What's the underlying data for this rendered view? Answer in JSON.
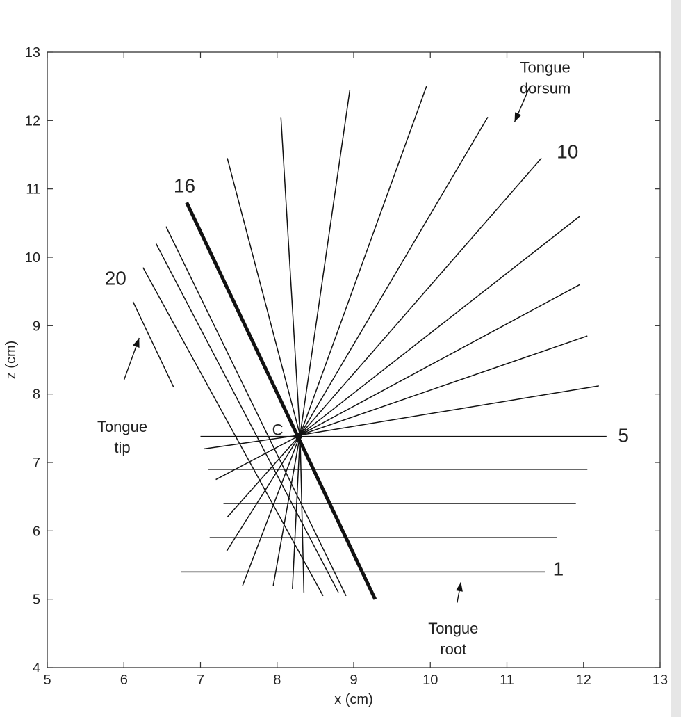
{
  "chart_data": {
    "type": "line",
    "xlabel": "x (cm)",
    "ylabel": "z (cm)",
    "xlim": [
      5,
      13
    ],
    "ylim": [
      4,
      13
    ],
    "x_ticks": [
      5,
      6,
      7,
      8,
      9,
      10,
      11,
      12,
      13
    ],
    "y_ticks": [
      4,
      5,
      6,
      7,
      8,
      9,
      10,
      11,
      12,
      13
    ],
    "grid": false,
    "center": {
      "label": "C",
      "x": 8.28,
      "z": 7.38
    },
    "highlighted_line": "16",
    "lines": [
      {
        "id": "1",
        "x": [
          6.75,
          11.5
        ],
        "z": [
          5.4,
          5.4
        ]
      },
      {
        "id": "2",
        "x": [
          7.12,
          11.65
        ],
        "z": [
          5.9,
          5.9
        ]
      },
      {
        "id": "3",
        "x": [
          7.3,
          11.9
        ],
        "z": [
          6.4,
          6.4
        ]
      },
      {
        "id": "4",
        "x": [
          7.1,
          12.05
        ],
        "z": [
          6.9,
          6.9
        ]
      },
      {
        "id": "5",
        "x": [
          7.0,
          12.3
        ],
        "z": [
          7.38,
          7.38
        ]
      },
      {
        "id": "6",
        "x": [
          8.3,
          12.2
        ],
        "z": [
          7.4,
          8.12
        ]
      },
      {
        "id": "7",
        "x": [
          8.3,
          12.05
        ],
        "z": [
          7.4,
          8.85
        ]
      },
      {
        "id": "8",
        "x": [
          8.3,
          11.95
        ],
        "z": [
          7.4,
          9.6
        ]
      },
      {
        "id": "9",
        "x": [
          8.3,
          11.95
        ],
        "z": [
          7.4,
          10.6
        ]
      },
      {
        "id": "10",
        "x": [
          8.3,
          11.45
        ],
        "z": [
          7.4,
          11.45
        ]
      },
      {
        "id": "11",
        "x": [
          8.3,
          10.75
        ],
        "z": [
          7.4,
          12.05
        ]
      },
      {
        "id": "12",
        "x": [
          8.3,
          9.95
        ],
        "z": [
          7.4,
          12.5
        ]
      },
      {
        "id": "13",
        "x": [
          8.3,
          8.95
        ],
        "z": [
          7.4,
          12.45
        ]
      },
      {
        "id": "14",
        "x": [
          8.3,
          8.05
        ],
        "z": [
          7.4,
          12.05
        ]
      },
      {
        "id": "15",
        "x": [
          8.3,
          7.35
        ],
        "z": [
          7.4,
          11.45
        ]
      },
      {
        "id": "16",
        "x": [
          6.82,
          9.28
        ],
        "z": [
          10.8,
          5.0
        ]
      },
      {
        "id": "17",
        "x": [
          6.55,
          8.9
        ],
        "z": [
          10.45,
          5.05
        ]
      },
      {
        "id": "18",
        "x": [
          6.42,
          8.8
        ],
        "z": [
          10.2,
          5.1
        ]
      },
      {
        "id": "19",
        "x": [
          6.25,
          8.6
        ],
        "z": [
          9.85,
          5.05
        ]
      },
      {
        "id": "20",
        "x": [
          6.12,
          6.65
        ],
        "z": [
          9.35,
          8.1
        ]
      },
      {
        "id": "21",
        "x": [
          8.3,
          7.55
        ],
        "z": [
          7.4,
          5.2
        ]
      },
      {
        "id": "22",
        "x": [
          8.3,
          7.95
        ],
        "z": [
          7.4,
          5.2
        ]
      },
      {
        "id": "23",
        "x": [
          8.3,
          8.35
        ],
        "z": [
          7.4,
          5.1
        ]
      },
      {
        "id": "24",
        "x": [
          8.3,
          8.2
        ],
        "z": [
          7.4,
          5.15
        ]
      },
      {
        "id": "25",
        "x": [
          8.3,
          7.34
        ],
        "z": [
          7.4,
          5.7
        ]
      },
      {
        "id": "26",
        "x": [
          8.3,
          7.35
        ],
        "z": [
          7.4,
          6.2
        ]
      },
      {
        "id": "27",
        "x": [
          8.3,
          7.2
        ],
        "z": [
          7.4,
          6.75
        ]
      },
      {
        "id": "28",
        "x": [
          8.3,
          7.05
        ],
        "z": [
          7.4,
          7.2
        ]
      }
    ],
    "line_labels": [
      {
        "text": "1",
        "x": 11.6,
        "z": 5.35
      },
      {
        "text": "5",
        "x": 12.45,
        "z": 7.3
      },
      {
        "text": "10",
        "x": 11.65,
        "z": 11.45
      },
      {
        "text": "16",
        "x": 6.65,
        "z": 10.95
      },
      {
        "text": "20",
        "x": 5.75,
        "z": 9.6
      }
    ],
    "annotations": [
      {
        "lines": [
          "Tongue",
          "dorsum"
        ],
        "text_x": 11.5,
        "text_z": 12.7,
        "arrow_from": [
          11.3,
          12.5
        ],
        "arrow_to": [
          11.1,
          11.98
        ]
      },
      {
        "lines": [
          "Tongue",
          "tip"
        ],
        "text_x": 5.98,
        "text_z": 7.45,
        "arrow_from": [
          6.0,
          8.2
        ],
        "arrow_to": [
          6.2,
          8.82
        ]
      },
      {
        "lines": [
          "Tongue",
          "root"
        ],
        "text_x": 10.3,
        "text_z": 4.5,
        "arrow_from": [
          10.35,
          4.95
        ],
        "arrow_to": [
          10.4,
          5.25
        ]
      }
    ]
  }
}
